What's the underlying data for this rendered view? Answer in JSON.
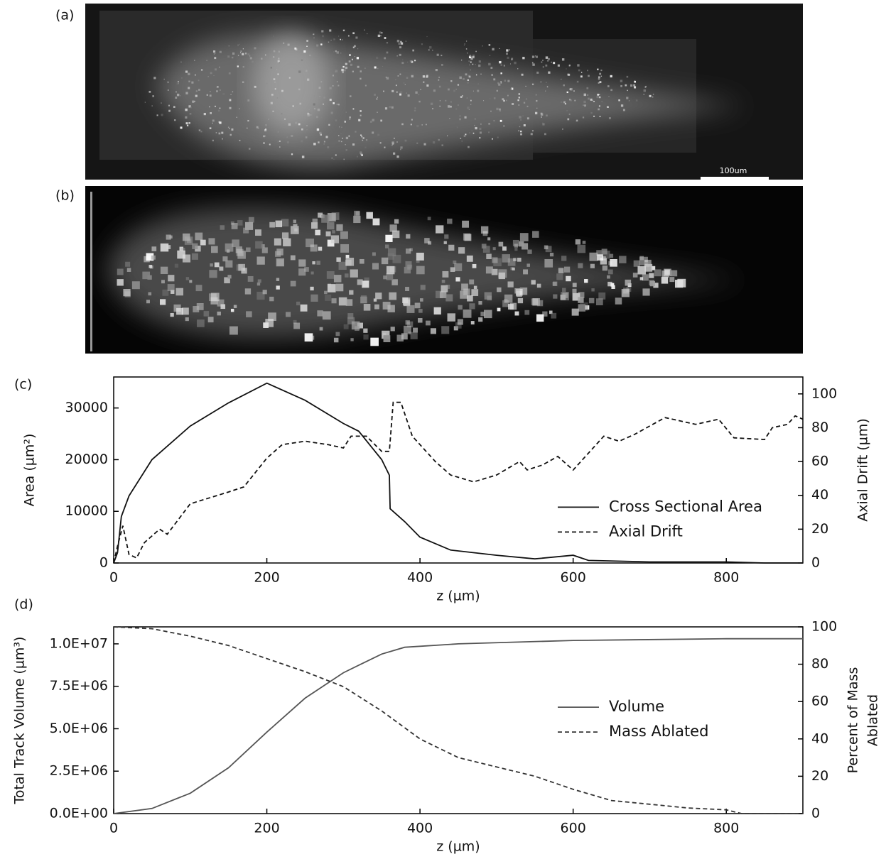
{
  "panels": [
    {
      "label": "(a)",
      "scale_bar": "100um"
    },
    {
      "label": "(b)"
    }
  ],
  "chart_data": [
    {
      "type": "line",
      "panel_label": "(c)",
      "xlabel": "z (µm)",
      "ylabel": "Area (µm²)",
      "y2label": [
        "Axial Drift (µm)"
      ],
      "xlim": [
        0,
        900
      ],
      "xticks": [
        0,
        200,
        400,
        600,
        800
      ],
      "ylim": [
        0,
        36000
      ],
      "yticks": [
        0,
        10000,
        20000,
        30000
      ],
      "y2lim": [
        0,
        110
      ],
      "y2ticks": [
        0,
        20,
        40,
        60,
        80,
        100
      ],
      "legend": "center right",
      "series": [
        {
          "name": "Cross Sectional Area",
          "color": "#111111",
          "style": "solid",
          "x": [
            0,
            5,
            10,
            20,
            50,
            100,
            150,
            200,
            250,
            300,
            320,
            350,
            360,
            361,
            380,
            400,
            440,
            500,
            550,
            600,
            620,
            700,
            800,
            850,
            900
          ],
          "values": [
            0,
            2000,
            9000,
            13000,
            20000,
            26500,
            31000,
            34800,
            31500,
            27000,
            25500,
            20000,
            17000,
            10500,
            8000,
            5000,
            2500,
            1500,
            800,
            1500,
            500,
            200,
            200,
            0,
            0
          ]
        },
        {
          "name": "Axial Drift",
          "color": "#111111",
          "style": "dashed",
          "axis": "y2",
          "x": [
            0,
            5,
            12,
            20,
            30,
            40,
            60,
            70,
            100,
            150,
            170,
            200,
            220,
            250,
            280,
            300,
            310,
            330,
            350,
            360,
            365,
            375,
            390,
            420,
            440,
            470,
            500,
            530,
            540,
            560,
            580,
            600,
            640,
            660,
            680,
            720,
            760,
            790,
            810,
            850,
            860,
            880,
            890,
            900
          ],
          "values": [
            0,
            10,
            22,
            5,
            3,
            12,
            20,
            17,
            35,
            42,
            45,
            62,
            70,
            72,
            70,
            68,
            75,
            75,
            66,
            66,
            95,
            95,
            75,
            60,
            52,
            48,
            52,
            60,
            55,
            58,
            63,
            55,
            75,
            72,
            76,
            86,
            82,
            85,
            74,
            73,
            80,
            82,
            87,
            85
          ]
        }
      ]
    },
    {
      "type": "line",
      "panel_label": "(d)",
      "xlabel": "z (µm)",
      "ylabel": "Total Track Volume (µm³)",
      "y2label": [
        "Percent of Mass",
        "Ablated"
      ],
      "xlim": [
        0,
        900
      ],
      "xticks": [
        0,
        200,
        400,
        600,
        800
      ],
      "ylim": [
        0,
        11000000
      ],
      "yticks": [
        {
          "value": 0,
          "label": "0.0E+00"
        },
        {
          "value": 2500000,
          "label": "2.5E+06"
        },
        {
          "value": 5000000,
          "label": "5.0E+06"
        },
        {
          "value": 7500000,
          "label": "7.5E+06"
        },
        {
          "value": 10000000,
          "label": "1.0E+07"
        }
      ],
      "y2lim": [
        0,
        100
      ],
      "y2ticks": [
        0,
        20,
        40,
        60,
        80,
        100
      ],
      "legend": "center right",
      "series": [
        {
          "name": "Volume",
          "color": "#555555",
          "style": "solid",
          "x": [
            0,
            50,
            100,
            150,
            200,
            250,
            300,
            350,
            380,
            450,
            600,
            800,
            900
          ],
          "values": [
            0,
            300000,
            1200000,
            2700000,
            4800000,
            6800000,
            8300000,
            9400000,
            9800000,
            10000000,
            10200000,
            10300000,
            10300000
          ]
        },
        {
          "name": "Mass Ablated",
          "color": "#333333",
          "style": "dashed",
          "axis": "y2",
          "x": [
            0,
            50,
            100,
            150,
            200,
            250,
            300,
            350,
            400,
            450,
            500,
            550,
            600,
            650,
            700,
            750,
            800,
            820,
            900
          ],
          "values": [
            100,
            99,
            95,
            90,
            83,
            76,
            68,
            55,
            40,
            30,
            25,
            20,
            13,
            7,
            5,
            3,
            2,
            0,
            0
          ]
        }
      ]
    }
  ]
}
